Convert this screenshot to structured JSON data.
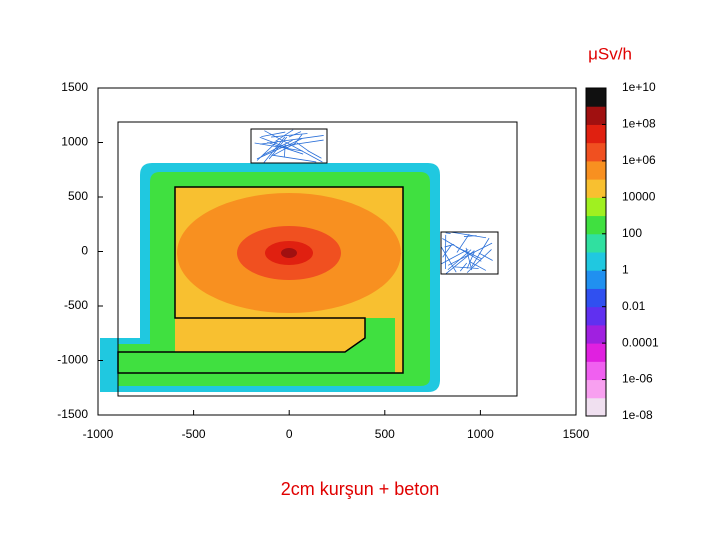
{
  "chart_data": {
    "type": "heatmap",
    "title": "μSv/h",
    "caption": "2cm kurşun + beton",
    "xlim": [
      -1000,
      1500
    ],
    "xticks": [
      -1000,
      -500,
      0,
      500,
      1000,
      1500
    ],
    "ylim": [
      -1500,
      1500
    ],
    "yticks": [
      -1500,
      -1000,
      -500,
      0,
      500,
      1000,
      1500
    ],
    "values": [
      1,
      100,
      10000,
      100,
      100000,
      1000000,
      10000000,
      100000000
    ],
    "clim": [
      1e-08,
      10000000000.0
    ],
    "log_scale": true,
    "cticks": [
      {
        "value": 10000000000.0,
        "label": "1e+10"
      },
      {
        "value": 100000000.0,
        "label": "1e+08"
      },
      {
        "value": 1000000.0,
        "label": "1e+06"
      },
      10000,
      100,
      1,
      0.01,
      0.0001,
      {
        "value": 1e-06,
        "label": "1e-06"
      },
      {
        "value": 1e-08,
        "label": "1e-08"
      }
    ],
    "colorscale": [
      "#f0e0f0",
      "#f8a0f0",
      "#f060f0",
      "#e020e0",
      "#a020e0",
      "#6030f0",
      "#3050f0",
      "#2090f0",
      "#20c8e0",
      "#30e0a0",
      "#40e040",
      "#a0f020",
      "#f8c030",
      "#f89020",
      "#f05020",
      "#e02010",
      "#a01010",
      "#101010"
    ]
  }
}
